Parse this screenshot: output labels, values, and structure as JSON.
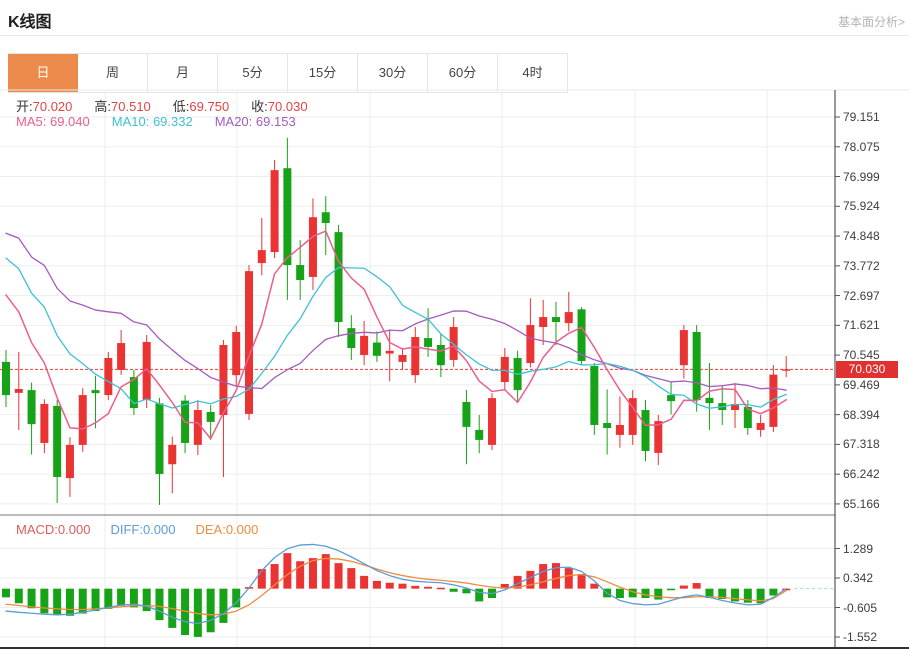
{
  "header": {
    "title": "K线图",
    "link": "基本面分析>"
  },
  "tabs": {
    "items": [
      "日",
      "周",
      "月",
      "5分",
      "15分",
      "30分",
      "60分",
      "4时"
    ],
    "selected": "日"
  },
  "readout": {
    "open_label": "开:",
    "open": "70.020",
    "high_label": "高:",
    "high": "70.510",
    "low_label": "低:",
    "low": "69.750",
    "close_label": "收:",
    "close": "70.030"
  },
  "ma_readout": {
    "ma5_label": "MA5:",
    "ma5": "69.040",
    "ma10_label": "MA10:",
    "ma10": "69.332",
    "ma20_label": "MA20:",
    "ma20": "69.153"
  },
  "macd_readout": {
    "macd_label": "MACD:",
    "macd": "0.000",
    "diff_label": "DIFF:",
    "diff": "0.000",
    "dea_label": "DEA:",
    "dea": "0.000"
  },
  "colors": {
    "up": "#ea3333",
    "down": "#17a317",
    "ma5": "#ec5e8e",
    "ma10": "#3ec1d3",
    "ma20": "#a55bbe",
    "diff": "#5b9cd6",
    "dea": "#ef8b3f",
    "macd_label": "#dd5c5c",
    "price_line": "#e23b3b",
    "badge_bg": "#e03030",
    "tab_selected_bg": "#ec8b4b",
    "ohlc_value": "#e24444",
    "grid": "#ededed",
    "axis_text": "#3d3d3d",
    "axis_line": "#333333",
    "zero_dash": "#9fd8e8"
  },
  "chart_data": {
    "type": "candlestick+macd",
    "main": {
      "ohlc": [
        [
          70.3,
          70.73,
          68.67,
          69.1
        ],
        [
          69.18,
          70.66,
          67.84,
          69.32
        ],
        [
          69.28,
          69.55,
          66.95,
          68.05
        ],
        [
          67.37,
          68.95,
          67.0,
          68.78
        ],
        [
          68.71,
          68.92,
          65.2,
          66.14
        ],
        [
          66.1,
          67.58,
          65.42,
          67.3
        ],
        [
          67.3,
          69.35,
          67.05,
          69.1
        ],
        [
          69.28,
          69.8,
          67.9,
          69.17
        ],
        [
          69.1,
          70.66,
          68.92,
          70.44
        ],
        [
          70.01,
          71.45,
          69.83,
          70.98
        ],
        [
          69.75,
          70.01,
          68.38,
          68.63
        ],
        [
          68.92,
          71.27,
          68.63,
          71.02
        ],
        [
          68.8,
          69.0,
          65.13,
          66.25
        ],
        [
          66.6,
          67.6,
          65.55,
          67.3
        ],
        [
          68.9,
          69.1,
          67.0,
          67.37
        ],
        [
          67.3,
          68.92,
          66.93,
          68.56
        ],
        [
          68.49,
          68.74,
          67.48,
          68.13
        ],
        [
          68.38,
          71.09,
          66.14,
          70.91
        ],
        [
          69.82,
          71.6,
          69.4,
          71.38
        ],
        [
          68.42,
          73.8,
          68.2,
          73.58
        ],
        [
          73.87,
          75.5,
          73.43,
          74.34
        ],
        [
          74.27,
          77.6,
          74.05,
          77.23
        ],
        [
          77.3,
          78.4,
          72.54,
          73.8
        ],
        [
          73.8,
          74.7,
          72.54,
          73.26
        ],
        [
          73.37,
          76.21,
          72.9,
          75.53
        ],
        [
          75.71,
          76.29,
          74.16,
          75.32
        ],
        [
          74.99,
          75.25,
          71.2,
          71.74
        ],
        [
          71.52,
          71.99,
          70.37,
          70.8
        ],
        [
          70.55,
          71.78,
          70.18,
          71.24
        ],
        [
          71.0,
          71.4,
          70.3,
          70.52
        ],
        [
          70.6,
          71.45,
          69.6,
          70.7
        ],
        [
          70.3,
          70.8,
          70.0,
          70.55
        ],
        [
          69.82,
          71.56,
          69.54,
          71.2
        ],
        [
          71.16,
          72.24,
          70.48,
          70.84
        ],
        [
          70.91,
          71.34,
          69.75,
          70.18
        ],
        [
          70.37,
          71.92,
          70.12,
          71.56
        ],
        [
          68.85,
          69.28,
          66.6,
          67.95
        ],
        [
          67.84,
          68.38,
          67.0,
          67.48
        ],
        [
          67.3,
          69.17,
          67.11,
          68.99
        ],
        [
          69.57,
          70.8,
          69.3,
          70.48
        ],
        [
          70.44,
          70.7,
          68.85,
          69.28
        ],
        [
          70.26,
          72.6,
          70.1,
          71.63
        ],
        [
          71.56,
          72.54,
          70.91,
          71.92
        ],
        [
          71.92,
          72.47,
          70.91,
          71.74
        ],
        [
          71.7,
          72.83,
          71.4,
          72.1
        ],
        [
          72.2,
          72.28,
          70.18,
          70.33
        ],
        [
          70.15,
          70.26,
          67.66,
          68.02
        ],
        [
          68.09,
          69.3,
          66.95,
          67.91
        ],
        [
          67.66,
          69.05,
          67.2,
          68.02
        ],
        [
          67.66,
          69.28,
          67.3,
          68.99
        ],
        [
          68.56,
          68.92,
          66.71,
          67.08
        ],
        [
          67.01,
          68.38,
          66.57,
          68.16
        ],
        [
          69.1,
          69.6,
          68.4,
          68.88
        ],
        [
          70.18,
          71.63,
          69.7,
          71.45
        ],
        [
          71.38,
          71.63,
          68.5,
          68.92
        ],
        [
          69.0,
          70.26,
          67.84,
          68.81
        ],
        [
          68.81,
          69.46,
          68.02,
          68.56
        ],
        [
          68.56,
          69.53,
          67.91,
          68.78
        ],
        [
          68.67,
          68.92,
          67.66,
          67.91
        ],
        [
          67.84,
          68.38,
          67.59,
          68.09
        ],
        [
          67.95,
          70.18,
          67.77,
          69.84
        ],
        [
          70.02,
          70.51,
          69.75,
          70.03
        ]
      ],
      "ma_anchor": {
        "ma5": 72.72,
        "ma10": 74.05,
        "ma20": 74.95
      },
      "y_ticks": [
        "79.151",
        "78.075",
        "76.999",
        "75.924",
        "74.848",
        "73.772",
        "72.697",
        "71.621",
        "70.545",
        "69.469",
        "68.394",
        "67.318",
        "66.242",
        "65.166"
      ],
      "last_price": "70.030",
      "price_line_value": 70.03
    },
    "macd": {
      "hist": [
        -0.28,
        -0.47,
        -0.63,
        -0.79,
        -0.85,
        -0.87,
        -0.8,
        -0.72,
        -0.65,
        -0.55,
        -0.6,
        -0.72,
        -1.01,
        -1.26,
        -1.49,
        -1.55,
        -1.4,
        -1.1,
        -0.6,
        0.05,
        0.63,
        0.79,
        1.14,
        0.88,
        0.98,
        1.11,
        0.82,
        0.66,
        0.41,
        0.25,
        0.19,
        0.16,
        0.09,
        0.06,
        0.03,
        -0.1,
        -0.15,
        -0.41,
        -0.3,
        0.15,
        0.41,
        0.57,
        0.79,
        0.82,
        0.66,
        0.47,
        0.16,
        -0.28,
        -0.3,
        -0.28,
        -0.3,
        -0.35,
        -0.05,
        0.1,
        0.18,
        -0.3,
        -0.33,
        -0.41,
        -0.45,
        -0.47,
        -0.22,
        0.0
      ],
      "diff": [
        -0.72,
        -0.76,
        -0.79,
        -0.82,
        -0.84,
        -0.82,
        -0.76,
        -0.68,
        -0.6,
        -0.53,
        -0.5,
        -0.56,
        -0.72,
        -0.92,
        -1.06,
        -1.12,
        -1.02,
        -0.8,
        -0.45,
        0.02,
        0.58,
        1.0,
        1.28,
        1.4,
        1.42,
        1.36,
        1.22,
        1.02,
        0.8,
        0.58,
        0.42,
        0.3,
        0.24,
        0.21,
        0.19,
        0.12,
        0.02,
        -0.12,
        -0.16,
        -0.04,
        0.16,
        0.36,
        0.55,
        0.67,
        0.69,
        0.55,
        0.25,
        -0.15,
        -0.38,
        -0.48,
        -0.52,
        -0.5,
        -0.38,
        -0.26,
        -0.2,
        -0.28,
        -0.38,
        -0.46,
        -0.52,
        -0.5,
        -0.28,
        0.0
      ],
      "dea": [
        -0.5,
        -0.54,
        -0.58,
        -0.62,
        -0.65,
        -0.67,
        -0.67,
        -0.65,
        -0.62,
        -0.58,
        -0.55,
        -0.54,
        -0.57,
        -0.64,
        -0.72,
        -0.8,
        -0.84,
        -0.82,
        -0.72,
        -0.52,
        -0.22,
        0.12,
        0.45,
        0.72,
        0.9,
        0.97,
        0.95,
        0.88,
        0.76,
        0.63,
        0.51,
        0.42,
        0.35,
        0.3,
        0.27,
        0.23,
        0.18,
        0.11,
        0.05,
        0.02,
        0.05,
        0.12,
        0.22,
        0.33,
        0.42,
        0.45,
        0.38,
        0.22,
        0.05,
        -0.1,
        -0.2,
        -0.26,
        -0.29,
        -0.29,
        -0.26,
        -0.26,
        -0.28,
        -0.32,
        -0.36,
        -0.39,
        -0.32,
        -0.06
      ],
      "y_ticks": [
        "1.289",
        "0.342",
        "-0.605",
        "-1.552"
      ]
    }
  }
}
